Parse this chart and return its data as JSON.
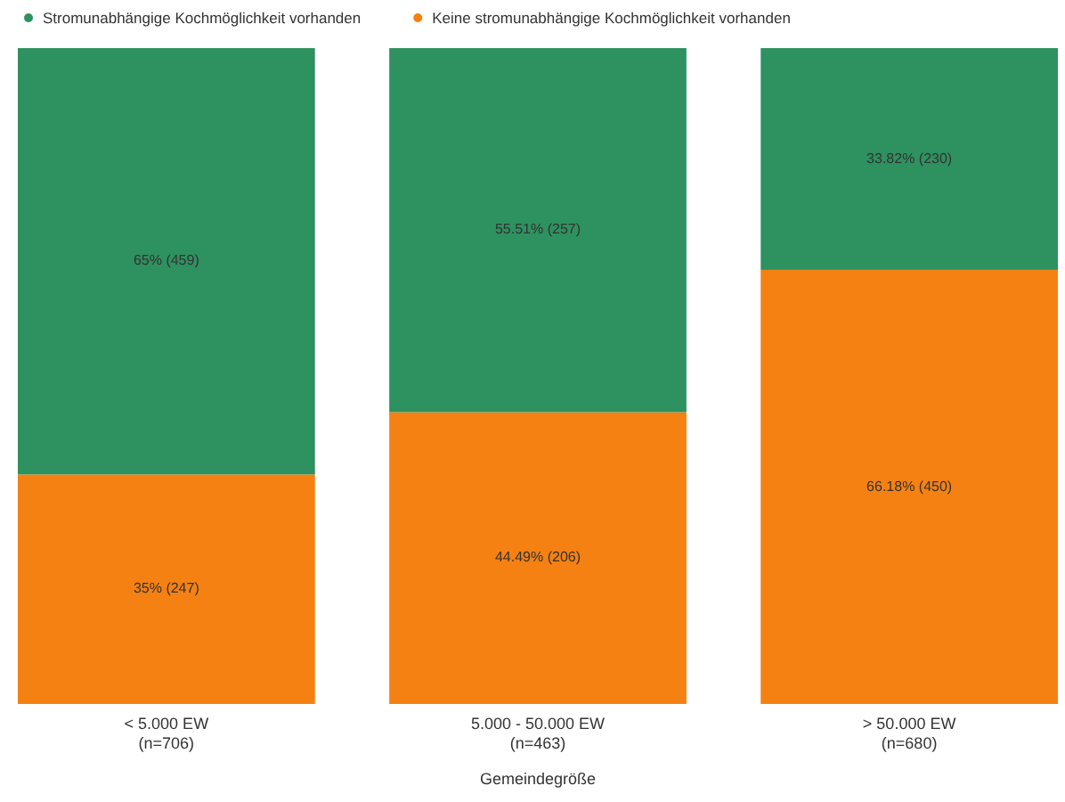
{
  "chart_data": {
    "type": "bar",
    "stacked": true,
    "xlabel": "Gemeindegröße",
    "categories": [
      "< 5.000 EW\n(n=706)",
      "5.000 - 50.000 EW\n(n=463)",
      "> 50.000 EW\n(n=680)"
    ],
    "ylim": [
      0,
      100
    ],
    "legend": "top left",
    "tick_labels": "x",
    "series": [
      {
        "name": "Keine stromunabhängige Kochmöglichkeit vorhanden",
        "color": "#f58112",
        "values": [
          35,
          44.49,
          66.18
        ],
        "value_labels": [
          "35% (247)",
          "44.49% (206)",
          "66.18% (450)"
        ]
      },
      {
        "name": "Stromunabhängige Kochmöglichkeit vorhanden",
        "color": "#2e9160",
        "values": [
          65,
          55.51,
          33.82
        ],
        "value_labels": [
          "65% (459)",
          "55.51% (257)",
          "33.82% (230)"
        ]
      }
    ]
  }
}
